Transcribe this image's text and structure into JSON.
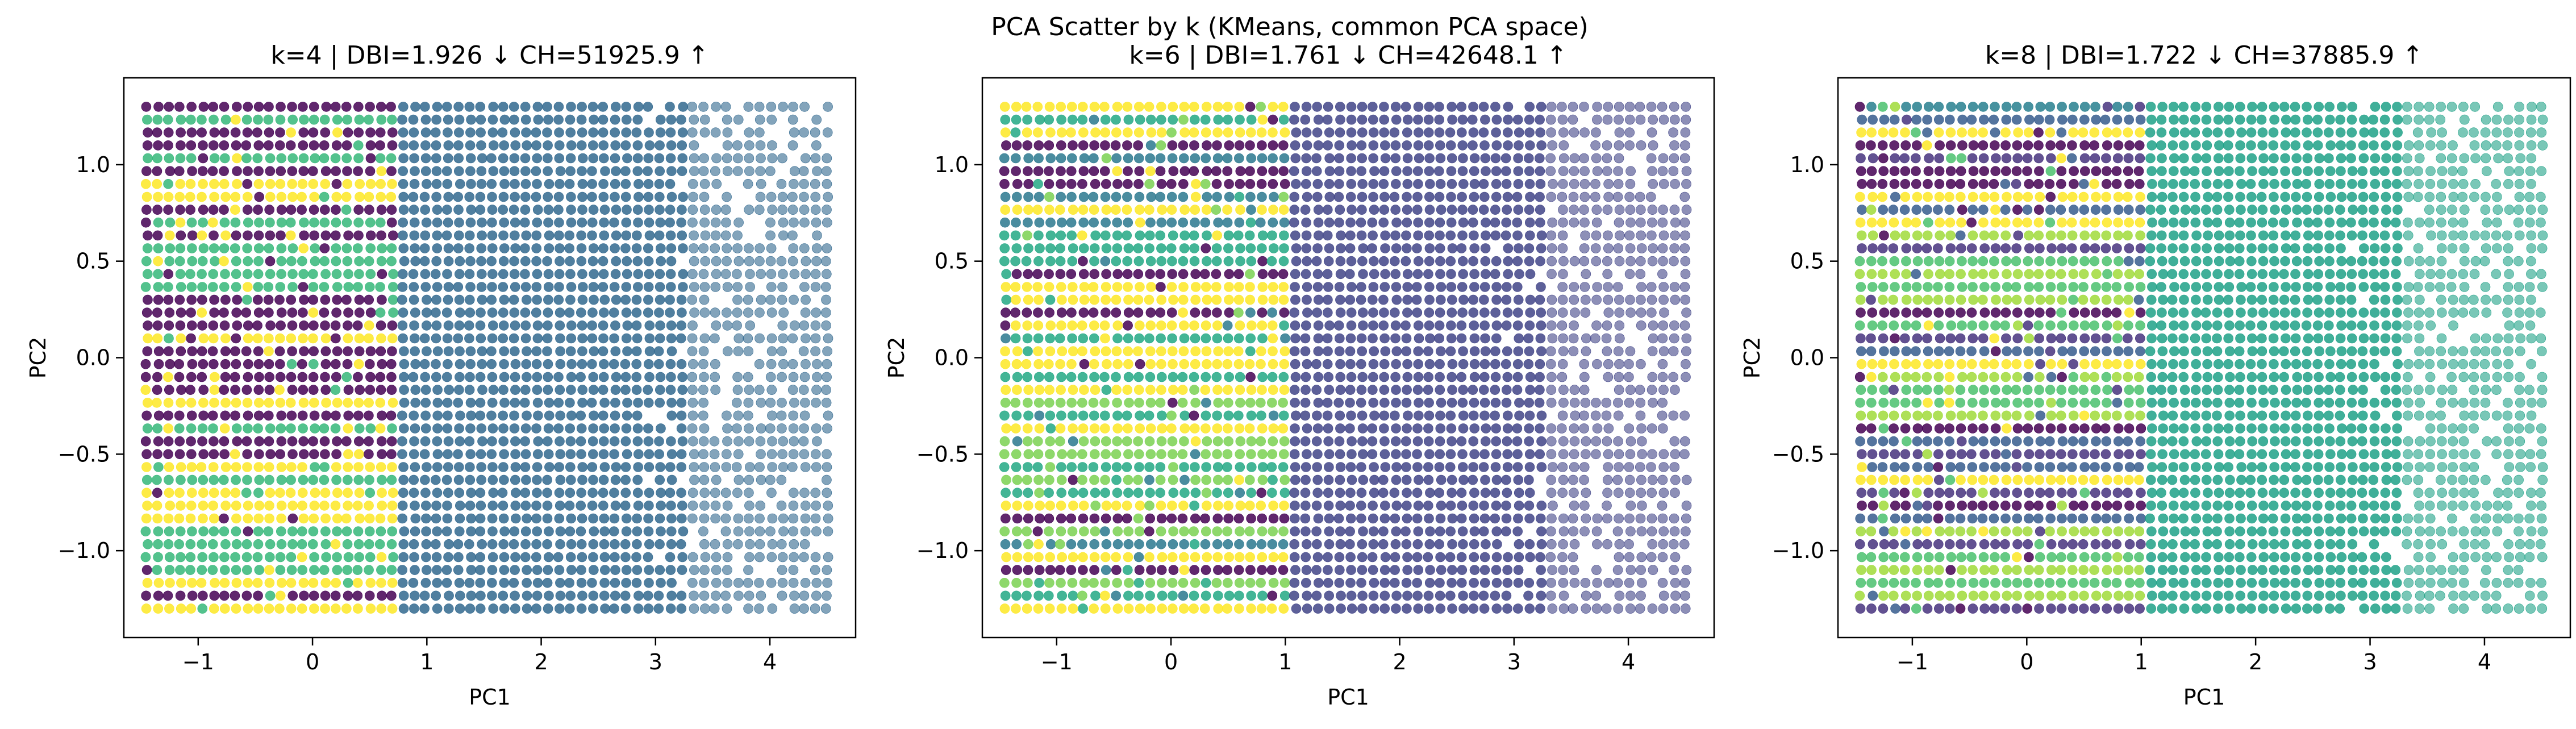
{
  "figure": {
    "suptitle": "PCA Scatter by k (KMeans, common PCA space)"
  },
  "palette": {
    "k4": [
      "#440154",
      "#31688e",
      "#35b779",
      "#fde725"
    ],
    "k6": [
      "#440154",
      "#414487",
      "#2a788e",
      "#22a884",
      "#7ad151",
      "#fde725"
    ],
    "k8": [
      "#440154",
      "#46327e",
      "#365c8d",
      "#277f8e",
      "#1fa187",
      "#4ac16d",
      "#a0da39",
      "#fde725"
    ]
  },
  "chart_data": [
    {
      "type": "scatter",
      "title": "k=4 | DBI=1.926 ↓  CH=51925.9 ↑",
      "xlabel": "PC1",
      "ylabel": "PC2",
      "xlim": [
        -1.65,
        4.75
      ],
      "ylim": [
        -1.45,
        1.45
      ],
      "xticks": [
        -1,
        0,
        1,
        2,
        3,
        4
      ],
      "xtick_labels": [
        "−1",
        "0",
        "1",
        "2",
        "3",
        "4"
      ],
      "yticks": [
        -1.0,
        -0.5,
        0.0,
        0.5,
        1.0
      ],
      "ytick_labels": [
        "−1.0",
        "−0.5",
        "0.0",
        "0.5",
        "1.0"
      ],
      "k": 4,
      "x_range": [
        -1.45,
        4.5
      ],
      "y_range": [
        -1.3,
        1.3
      ],
      "dense_x_max": 0.78,
      "right_cluster": 1,
      "top_cluster": 0,
      "left_clusters": [
        0,
        2,
        3
      ],
      "cluster_labels_seed": 4
    },
    {
      "type": "scatter",
      "title": "k=6 | DBI=1.761 ↓  CH=42648.1 ↑",
      "xlabel": "PC1",
      "ylabel": "PC2",
      "xlim": [
        -1.65,
        4.75
      ],
      "ylim": [
        -1.45,
        1.45
      ],
      "xticks": [
        -1,
        0,
        1,
        2,
        3,
        4
      ],
      "xtick_labels": [
        "−1",
        "0",
        "1",
        "2",
        "3",
        "4"
      ],
      "yticks": [
        -1.0,
        -0.5,
        0.0,
        0.5,
        1.0
      ],
      "ytick_labels": [
        "−1.0",
        "−0.5",
        "0.0",
        "0.5",
        "1.0"
      ],
      "k": 6,
      "x_range": [
        -1.45,
        4.5
      ],
      "y_range": [
        -1.3,
        1.3
      ],
      "dense_x_max": 1.0,
      "right_cluster": 1,
      "top_cluster": 5,
      "left_clusters": [
        0,
        2,
        3,
        4,
        5
      ],
      "cluster_labels_seed": 6
    },
    {
      "type": "scatter",
      "title": "k=8 | DBI=1.722 ↓  CH=37885.9 ↑",
      "xlabel": "PC1",
      "ylabel": "PC2",
      "xlim": [
        -1.65,
        4.75
      ],
      "ylim": [
        -1.45,
        1.45
      ],
      "xticks": [
        -1,
        0,
        1,
        2,
        3,
        4
      ],
      "xtick_labels": [
        "−1",
        "0",
        "1",
        "2",
        "3",
        "4"
      ],
      "yticks": [
        -1.0,
        -0.5,
        0.0,
        0.5,
        1.0
      ],
      "ytick_labels": [
        "−1.0",
        "−0.5",
        "0.0",
        "0.5",
        "1.0"
      ],
      "k": 8,
      "x_range": [
        -1.45,
        4.5
      ],
      "y_range": [
        -1.3,
        1.3
      ],
      "dense_x_max": 1.05,
      "right_cluster": 4,
      "top_cluster": 3,
      "left_clusters": [
        0,
        1,
        2,
        5,
        6,
        7
      ],
      "cluster_labels_seed": 8
    }
  ]
}
